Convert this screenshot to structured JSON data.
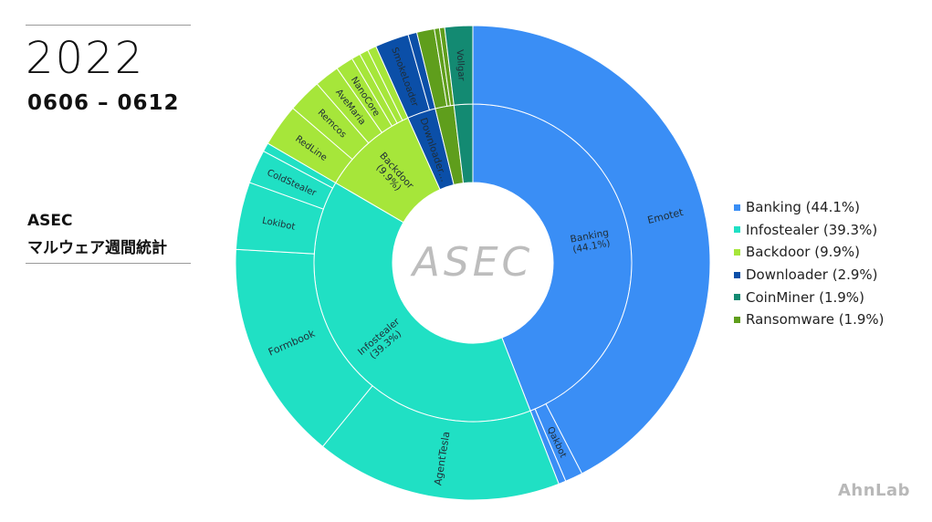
{
  "header": {
    "year": "2022",
    "date_range": "0606 – 0612",
    "title_line1": "ASEC",
    "title_line2": "マルウェア週間統計"
  },
  "brand": "AhnLab",
  "center_logo": "ASEC",
  "colors": {
    "Banking": "#3a8ef5",
    "Infostealer": "#20e0c4",
    "Backdoor": "#a6e63a",
    "Downloader": "#0b4fa8",
    "CoinMiner": "#138a72",
    "Ransomware": "#5f9e1c"
  },
  "chart_data": {
    "type": "sunburst",
    "title": "",
    "legend_position": "right",
    "categories": [
      {
        "name": "Banking",
        "label": "Banking\n(44.1%)",
        "value": 44.1,
        "legend": "Banking (44.1%)",
        "children": [
          {
            "name": "Emotet",
            "label": "Emotet",
            "value": 42.4
          },
          {
            "name": "Qakbot",
            "label": "Qakbot",
            "value": 1.2
          },
          {
            "name": "",
            "label": "",
            "value": 0.5
          }
        ]
      },
      {
        "name": "Infostealer",
        "label": "Infostealer\n(39.3%)",
        "value": 39.3,
        "legend": "Infostealer (39.3%)",
        "children": [
          {
            "name": "AgentTesla",
            "label": "AgentTesla",
            "value": 16.8
          },
          {
            "name": "Formbook",
            "label": "Formbook",
            "value": 15.0
          },
          {
            "name": "Lokibot",
            "label": "Lokibot",
            "value": 4.6
          },
          {
            "name": "ColdStealer",
            "label": "ColdStealer",
            "value": 2.3
          },
          {
            "name": "",
            "label": "",
            "value": 0.6
          }
        ]
      },
      {
        "name": "Backdoor",
        "label": "Backdoor\n(9.9%)",
        "value": 9.9,
        "legend": "Backdoor (9.9%)",
        "children": [
          {
            "name": "RedLine",
            "label": "RedLine",
            "value": 2.9
          },
          {
            "name": "Remcos",
            "label": "Remcos",
            "value": 2.3
          },
          {
            "name": "AveMaria",
            "label": "AveMaria",
            "value": 1.7
          },
          {
            "name": "NanoCore",
            "label": "NanoCore",
            "value": 1.2
          },
          {
            "name": "",
            "label": "",
            "value": 0.6
          },
          {
            "name": "",
            "label": "",
            "value": 0.6
          },
          {
            "name": "",
            "label": "",
            "value": 0.6
          }
        ]
      },
      {
        "name": "Downloader",
        "label": "Downloader…",
        "value": 2.9,
        "legend": "Downloader (2.9%)",
        "children": [
          {
            "name": "SmokeLoader",
            "label": "SmokeLoader",
            "value": 2.3
          },
          {
            "name": "",
            "label": "",
            "value": 0.6
          }
        ]
      },
      {
        "name": "Ransomware",
        "label": "",
        "value": 1.9,
        "legend": "Ransomware (1.9%)",
        "children": [
          {
            "name": "",
            "label": "",
            "value": 1.2
          },
          {
            "name": "",
            "label": "",
            "value": 0.35
          },
          {
            "name": "",
            "label": "",
            "value": 0.35
          }
        ]
      },
      {
        "name": "CoinMiner",
        "label": "",
        "value": 1.9,
        "legend": "CoinMiner (1.9%)",
        "children": [
          {
            "name": "Vollgar",
            "label": "Vollgar",
            "value": 1.9
          }
        ]
      }
    ]
  },
  "legend": [
    {
      "label": "Banking (44.1%)",
      "color": "#3a8ef5"
    },
    {
      "label": "Infostealer (39.3%)",
      "color": "#20e0c4"
    },
    {
      "label": "Backdoor (9.9%)",
      "color": "#a6e63a"
    },
    {
      "label": "Downloader (2.9%)",
      "color": "#0b4fa8"
    },
    {
      "label": "CoinMiner (1.9%)",
      "color": "#138a72"
    },
    {
      "label": "Ransomware (1.9%)",
      "color": "#5f9e1c"
    }
  ]
}
